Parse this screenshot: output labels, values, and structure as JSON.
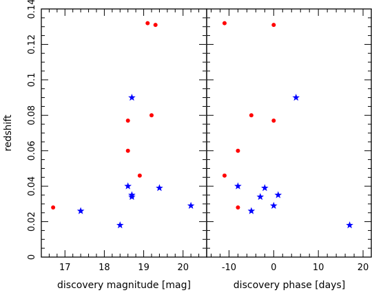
{
  "chart_data": [
    {
      "type": "scatter",
      "panel": "left",
      "xlabel": "discovery magnitude [mag]",
      "ylabel": "redshift",
      "xlim": [
        16.4,
        20.6
      ],
      "ylim": [
        0,
        0.14
      ],
      "xticks": [
        17,
        18,
        19,
        20
      ],
      "yticks": [
        0,
        0.02,
        0.04,
        0.06,
        0.08,
        0.1,
        0.12,
        0.14
      ],
      "grid": false,
      "series": [
        {
          "marker": "circle",
          "color": "#ff0000",
          "points": [
            {
              "x": 16.7,
              "y": 0.028
            },
            {
              "x": 18.6,
              "y": 0.077
            },
            {
              "x": 18.6,
              "y": 0.06
            },
            {
              "x": 18.9,
              "y": 0.046
            },
            {
              "x": 19.1,
              "y": 0.132
            },
            {
              "x": 19.2,
              "y": 0.08
            },
            {
              "x": 19.3,
              "y": 0.131
            }
          ]
        },
        {
          "marker": "star",
          "color": "#0000ff",
          "points": [
            {
              "x": 17.4,
              "y": 0.026
            },
            {
              "x": 18.4,
              "y": 0.018
            },
            {
              "x": 18.6,
              "y": 0.04
            },
            {
              "x": 18.7,
              "y": 0.09
            },
            {
              "x": 18.7,
              "y": 0.035
            },
            {
              "x": 18.7,
              "y": 0.034
            },
            {
              "x": 19.4,
              "y": 0.039
            },
            {
              "x": 20.2,
              "y": 0.029
            }
          ]
        }
      ]
    },
    {
      "type": "scatter",
      "panel": "right",
      "xlabel": "discovery phase [days]",
      "xlim": [
        -15,
        22
      ],
      "ylim": [
        0,
        0.14
      ],
      "xticks": [
        -10,
        0,
        10,
        20
      ],
      "grid": false,
      "series": [
        {
          "marker": "circle",
          "color": "#ff0000",
          "points": [
            {
              "x": -11,
              "y": 0.132
            },
            {
              "x": 0,
              "y": 0.131
            },
            {
              "x": -5,
              "y": 0.08
            },
            {
              "x": 0,
              "y": 0.077
            },
            {
              "x": -8,
              "y": 0.06
            },
            {
              "x": -11,
              "y": 0.046
            },
            {
              "x": -8,
              "y": 0.028
            }
          ]
        },
        {
          "marker": "star",
          "color": "#0000ff",
          "points": [
            {
              "x": 5,
              "y": 0.09
            },
            {
              "x": -8,
              "y": 0.04
            },
            {
              "x": -2,
              "y": 0.039
            },
            {
              "x": 1,
              "y": 0.035
            },
            {
              "x": -3,
              "y": 0.034
            },
            {
              "x": 0,
              "y": 0.029
            },
            {
              "x": -5,
              "y": 0.026
            },
            {
              "x": 17,
              "y": 0.018
            }
          ]
        }
      ]
    }
  ]
}
